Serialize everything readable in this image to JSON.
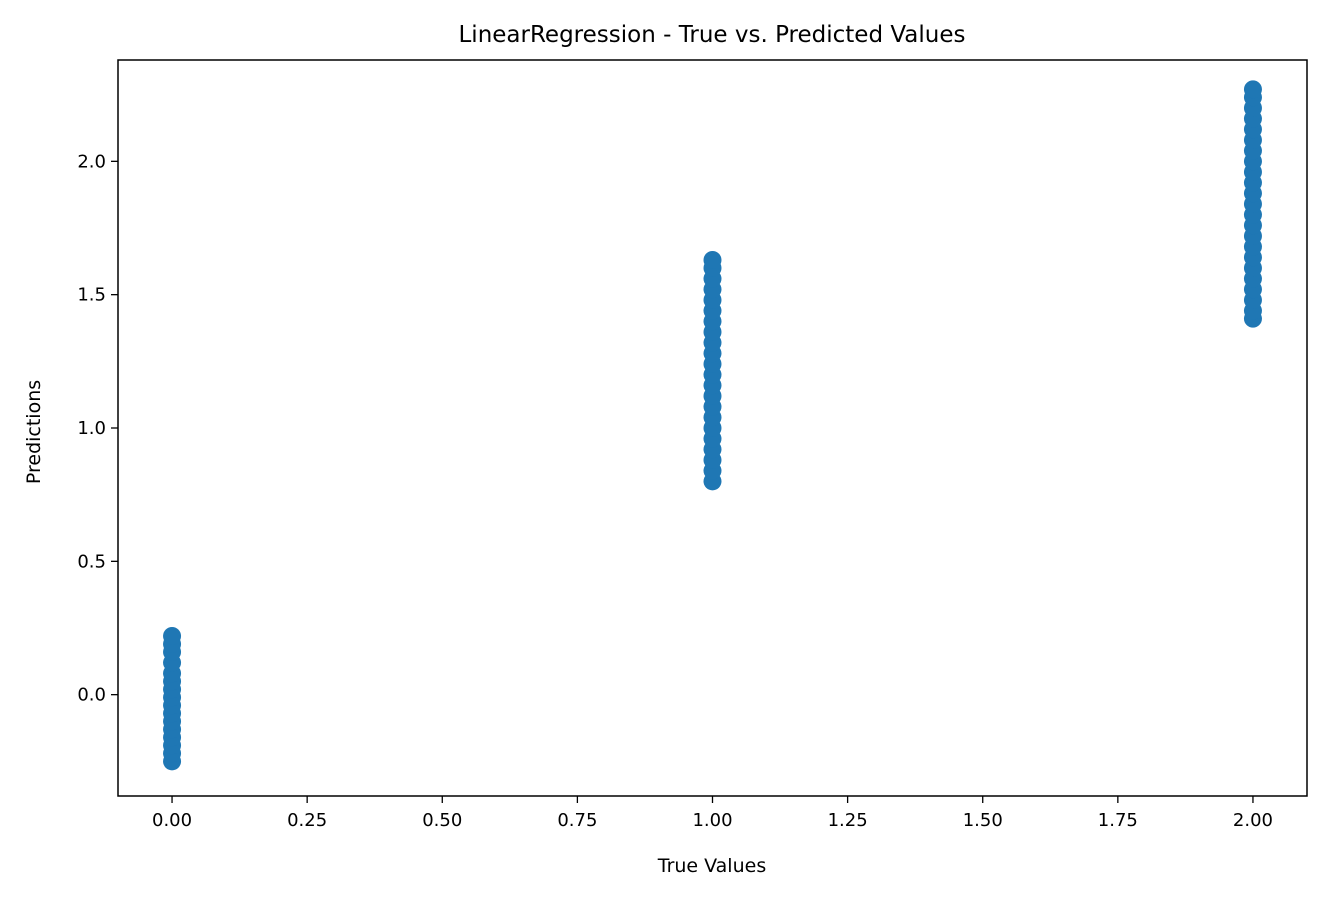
{
  "chart_data": {
    "type": "scatter",
    "title": "LinearRegression - True vs. Predicted Values",
    "xlabel": "True Values",
    "ylabel": "Predictions",
    "xlim": [
      -0.1,
      2.1
    ],
    "ylim": [
      -0.38,
      2.38
    ],
    "xticks": [
      0.0,
      0.25,
      0.5,
      0.75,
      1.0,
      1.25,
      1.5,
      1.75,
      2.0
    ],
    "xtick_labels": [
      "0.00",
      "0.25",
      "0.50",
      "0.75",
      "1.00",
      "1.25",
      "1.50",
      "1.75",
      "2.00"
    ],
    "yticks": [
      0.0,
      0.5,
      1.0,
      1.5,
      2.0
    ],
    "ytick_labels": [
      "0.0",
      "0.5",
      "1.0",
      "1.5",
      "2.0"
    ],
    "grid": false,
    "marker_color": "#1f77b4",
    "points": [
      {
        "x": 0,
        "y": -0.25
      },
      {
        "x": 0,
        "y": -0.22
      },
      {
        "x": 0,
        "y": -0.19
      },
      {
        "x": 0,
        "y": -0.16
      },
      {
        "x": 0,
        "y": -0.13
      },
      {
        "x": 0,
        "y": -0.1
      },
      {
        "x": 0,
        "y": -0.07
      },
      {
        "x": 0,
        "y": -0.04
      },
      {
        "x": 0,
        "y": -0.01
      },
      {
        "x": 0,
        "y": 0.02
      },
      {
        "x": 0,
        "y": 0.05
      },
      {
        "x": 0,
        "y": 0.08
      },
      {
        "x": 0,
        "y": 0.12
      },
      {
        "x": 0,
        "y": 0.16
      },
      {
        "x": 0,
        "y": 0.19
      },
      {
        "x": 0,
        "y": 0.22
      },
      {
        "x": 1,
        "y": 0.8
      },
      {
        "x": 1,
        "y": 0.84
      },
      {
        "x": 1,
        "y": 0.88
      },
      {
        "x": 1,
        "y": 0.92
      },
      {
        "x": 1,
        "y": 0.96
      },
      {
        "x": 1,
        "y": 1.0
      },
      {
        "x": 1,
        "y": 1.04
      },
      {
        "x": 1,
        "y": 1.08
      },
      {
        "x": 1,
        "y": 1.12
      },
      {
        "x": 1,
        "y": 1.16
      },
      {
        "x": 1,
        "y": 1.2
      },
      {
        "x": 1,
        "y": 1.24
      },
      {
        "x": 1,
        "y": 1.28
      },
      {
        "x": 1,
        "y": 1.32
      },
      {
        "x": 1,
        "y": 1.36
      },
      {
        "x": 1,
        "y": 1.4
      },
      {
        "x": 1,
        "y": 1.44
      },
      {
        "x": 1,
        "y": 1.48
      },
      {
        "x": 1,
        "y": 1.52
      },
      {
        "x": 1,
        "y": 1.56
      },
      {
        "x": 1,
        "y": 1.6
      },
      {
        "x": 1,
        "y": 1.63
      },
      {
        "x": 2,
        "y": 1.41
      },
      {
        "x": 2,
        "y": 1.44
      },
      {
        "x": 2,
        "y": 1.48
      },
      {
        "x": 2,
        "y": 1.52
      },
      {
        "x": 2,
        "y": 1.56
      },
      {
        "x": 2,
        "y": 1.6
      },
      {
        "x": 2,
        "y": 1.64
      },
      {
        "x": 2,
        "y": 1.68
      },
      {
        "x": 2,
        "y": 1.72
      },
      {
        "x": 2,
        "y": 1.76
      },
      {
        "x": 2,
        "y": 1.8
      },
      {
        "x": 2,
        "y": 1.84
      },
      {
        "x": 2,
        "y": 1.88
      },
      {
        "x": 2,
        "y": 1.92
      },
      {
        "x": 2,
        "y": 1.96
      },
      {
        "x": 2,
        "y": 2.0
      },
      {
        "x": 2,
        "y": 2.04
      },
      {
        "x": 2,
        "y": 2.08
      },
      {
        "x": 2,
        "y": 2.12
      },
      {
        "x": 2,
        "y": 2.16
      },
      {
        "x": 2,
        "y": 2.2
      },
      {
        "x": 2,
        "y": 2.24
      },
      {
        "x": 2,
        "y": 2.27
      }
    ]
  }
}
